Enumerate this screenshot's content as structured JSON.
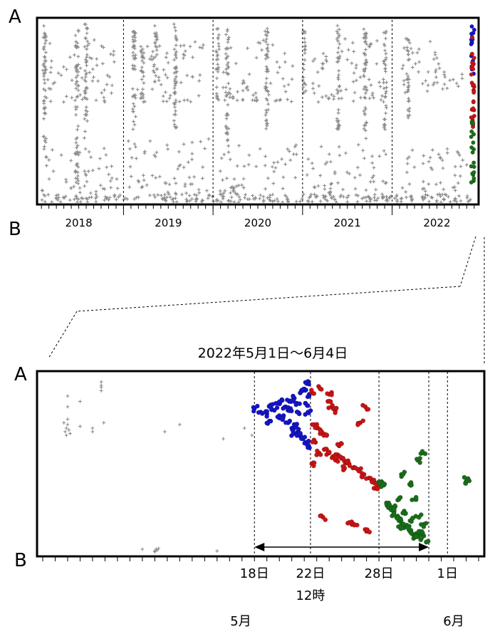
{
  "chart_data": [
    {
      "id": "overview",
      "type": "scatter",
      "endpoint_labels": {
        "top": "A",
        "bottom": "B"
      },
      "x_tick_labels": [
        "2018",
        "2019",
        "2020",
        "2021",
        "2022"
      ],
      "xlim": [
        2017.55,
        2022.45
      ],
      "ylim": [
        0,
        1
      ],
      "year_boundaries": [
        2018.5,
        2019.5,
        2020.5,
        2021.5
      ],
      "grid": false,
      "legend": "none",
      "series": [
        {
          "marker": "plus",
          "color": "#8a8a8a",
          "bursts": [
            {
              "x": 2017.62,
              "y0": 0.25,
              "y1": 0.97
            },
            {
              "x": 2017.98,
              "y0": 0.1,
              "y1": 0.95
            },
            {
              "x": 2018.08,
              "y0": 0.35,
              "y1": 0.98
            },
            {
              "x": 2018.62,
              "y0": 0.4,
              "y1": 0.96
            },
            {
              "x": 2018.71,
              "y0": 0.55,
              "y1": 0.9
            },
            {
              "x": 2018.86,
              "y0": 0.65,
              "y1": 0.97
            },
            {
              "x": 2019.08,
              "y0": 0.35,
              "y1": 0.98
            },
            {
              "x": 2019.55,
              "y0": 0.55,
              "y1": 0.96
            },
            {
              "x": 2019.66,
              "y0": 0.3,
              "y1": 0.95
            },
            {
              "x": 2020.1,
              "y0": 0.4,
              "y1": 0.98
            },
            {
              "x": 2020.52,
              "y0": 0.6,
              "y1": 0.95
            },
            {
              "x": 2020.9,
              "y0": 0.4,
              "y1": 0.98
            },
            {
              "x": 2021.2,
              "y0": 0.35,
              "y1": 0.98
            },
            {
              "x": 2021.42,
              "y0": 0.4,
              "y1": 0.96
            },
            {
              "x": 2021.68,
              "y0": 0.45,
              "y1": 0.9
            }
          ],
          "clusters": [
            {
              "x0": 2017.58,
              "x1": 2018.45,
              "y0": 0.05,
              "y1": 0.3
            },
            {
              "x0": 2018.55,
              "x1": 2019.45,
              "y0": 0.05,
              "y1": 0.35
            },
            {
              "x0": 2019.55,
              "x1": 2020.45,
              "y0": 0.05,
              "y1": 0.32
            },
            {
              "x0": 2020.55,
              "x1": 2021.45,
              "y0": 0.05,
              "y1": 0.32
            },
            {
              "x0": 2021.55,
              "x1": 2022.35,
              "y0": 0.05,
              "y1": 0.3
            },
            {
              "x0": 2017.6,
              "x1": 2018.4,
              "y0": 0.55,
              "y1": 0.9
            },
            {
              "x0": 2018.6,
              "x1": 2019.4,
              "y0": 0.55,
              "y1": 0.9
            },
            {
              "x0": 2019.6,
              "x1": 2020.4,
              "y0": 0.55,
              "y1": 0.9
            },
            {
              "x0": 2020.6,
              "x1": 2021.4,
              "y0": 0.55,
              "y1": 0.9
            },
            {
              "x0": 2021.6,
              "x1": 2022.3,
              "y0": 0.6,
              "y1": 0.9
            }
          ],
          "baseline_density": "high"
        },
        {
          "marker": "dot",
          "color": "#1414c8",
          "bursts": [
            {
              "x": 2022.4,
              "y0": 0.7,
              "y1": 0.97
            }
          ]
        },
        {
          "marker": "dot",
          "color": "#c81414",
          "bursts": [
            {
              "x": 2022.4,
              "y0": 0.4,
              "y1": 0.92
            }
          ]
        },
        {
          "marker": "dot",
          "color": "#1a6e1a",
          "bursts": [
            {
              "x": 2022.4,
              "y0": 0.1,
              "y1": 0.45
            }
          ]
        }
      ]
    },
    {
      "id": "detail",
      "type": "scatter",
      "title": "2022年5月1日～6月4日",
      "endpoint_labels": {
        "top": "A",
        "bottom": "B"
      },
      "xlim": [
        1,
        36
      ],
      "ylim": [
        0,
        1
      ],
      "x_unit": "days since 2022-05-01",
      "event_lines": [
        {
          "x": 18,
          "label": "18日"
        },
        {
          "x": 22.5,
          "label": "22日",
          "sub_label": "12時"
        },
        {
          "x": 28,
          "label": "28日"
        },
        {
          "x": 32,
          "label": ""
        },
        {
          "x": 33.5,
          "label": "1日"
        }
      ],
      "month_labels": [
        {
          "x": 15,
          "label": "5月"
        },
        {
          "x": 33.5,
          "label": "6月"
        }
      ],
      "span_arrow": {
        "from": 18,
        "to": 32
      },
      "grid": false,
      "legend": "none",
      "series": [
        {
          "marker": "plus",
          "color": "#8a8a8a",
          "points": [
            [
              3.0,
              0.88
            ],
            [
              3.0,
              0.82
            ],
            [
              4.0,
              0.85
            ],
            [
              5.7,
              0.96
            ],
            [
              5.7,
              0.94
            ],
            [
              5.7,
              0.93
            ],
            [
              5.7,
              0.91
            ],
            [
              5.9,
              0.73
            ],
            [
              5.0,
              0.68
            ],
            [
              5.0,
              0.7
            ],
            [
              2.8,
              0.68
            ],
            [
              2.9,
              0.7
            ],
            [
              3.0,
              0.72
            ],
            [
              3.1,
              0.69
            ],
            [
              2.9,
              0.66
            ],
            [
              3.2,
              0.67
            ],
            [
              2.7,
              0.73
            ],
            [
              3.0,
              0.75
            ],
            [
              4.0,
              0.71
            ],
            [
              12.0,
              0.72
            ],
            [
              15.5,
              0.64
            ],
            [
              17.2,
              0.7
            ],
            [
              17.8,
              0.66
            ],
            [
              10.8,
              0.68
            ],
            [
              9.0,
              0.02
            ],
            [
              10.0,
              0.01
            ],
            [
              10.1,
              0.02
            ],
            [
              10.2,
              0.015
            ],
            [
              10.3,
              0.025
            ],
            [
              10.0,
              0.005
            ],
            [
              15.0,
              0.01
            ]
          ]
        },
        {
          "marker": "dot",
          "color": "#1414c8",
          "points": [
            [
              18.0,
              0.81
            ],
            [
              18.5,
              0.79
            ],
            [
              19.0,
              0.78
            ],
            [
              19.3,
              0.83
            ],
            [
              19.6,
              0.8
            ],
            [
              19.9,
              0.84
            ],
            [
              20.2,
              0.86
            ],
            [
              20.5,
              0.82
            ],
            [
              20.8,
              0.85
            ],
            [
              21.1,
              0.88
            ],
            [
              21.4,
              0.84
            ],
            [
              21.7,
              0.9
            ],
            [
              22.0,
              0.92
            ],
            [
              22.2,
              0.95
            ],
            [
              22.4,
              0.89
            ],
            [
              20.3,
              0.76
            ],
            [
              20.7,
              0.73
            ],
            [
              21.0,
              0.7
            ],
            [
              21.3,
              0.72
            ],
            [
              21.5,
              0.68
            ],
            [
              21.7,
              0.66
            ],
            [
              21.9,
              0.64
            ],
            [
              22.1,
              0.62
            ],
            [
              22.3,
              0.6
            ],
            [
              19.2,
              0.74
            ],
            [
              20.0,
              0.77
            ],
            [
              20.9,
              0.81
            ],
            [
              21.6,
              0.78
            ],
            [
              22.1,
              0.84
            ],
            [
              22.3,
              0.79
            ],
            [
              21.2,
              0.67
            ]
          ]
        },
        {
          "marker": "dot",
          "color": "#c81414",
          "points": [
            [
              22.6,
              0.9
            ],
            [
              23.3,
              0.92
            ],
            [
              24.0,
              0.89
            ],
            [
              23.9,
              0.85
            ],
            [
              24.2,
              0.82
            ],
            [
              24.5,
              0.8
            ],
            [
              22.8,
              0.72
            ],
            [
              23.1,
              0.7
            ],
            [
              23.4,
              0.68
            ],
            [
              23.8,
              0.66
            ],
            [
              22.9,
              0.62
            ],
            [
              23.6,
              0.58
            ],
            [
              24.0,
              0.56
            ],
            [
              24.3,
              0.54
            ],
            [
              24.7,
              0.55
            ],
            [
              25.0,
              0.53
            ],
            [
              25.3,
              0.51
            ],
            [
              25.6,
              0.5
            ],
            [
              26.0,
              0.48
            ],
            [
              26.4,
              0.46
            ],
            [
              26.8,
              0.44
            ],
            [
              27.2,
              0.42
            ],
            [
              27.6,
              0.4
            ],
            [
              28.0,
              0.38
            ],
            [
              26.9,
              0.82
            ],
            [
              26.5,
              0.73
            ],
            [
              22.6,
              0.5
            ],
            [
              23.2,
              0.56
            ],
            [
              24.8,
              0.6
            ],
            [
              23.5,
              0.2
            ],
            [
              25.6,
              0.17
            ],
            [
              27.0,
              0.12
            ],
            [
              26.0,
              0.16
            ],
            [
              24.5,
              0.52
            ],
            [
              25.2,
              0.47
            ],
            [
              27.8,
              0.36
            ]
          ]
        },
        {
          "marker": "dot",
          "color": "#1a6e1a",
          "points": [
            [
              28.2,
              0.4
            ],
            [
              28.4,
              0.38
            ],
            [
              28.6,
              0.28
            ],
            [
              28.8,
              0.26
            ],
            [
              29.0,
              0.24
            ],
            [
              29.2,
              0.22
            ],
            [
              29.4,
              0.2
            ],
            [
              29.6,
              0.18
            ],
            [
              29.8,
              0.16
            ],
            [
              30.0,
              0.14
            ],
            [
              30.2,
              0.15
            ],
            [
              30.4,
              0.13
            ],
            [
              30.6,
              0.11
            ],
            [
              30.8,
              0.1
            ],
            [
              31.0,
              0.09
            ],
            [
              31.2,
              0.1
            ],
            [
              31.4,
              0.08
            ],
            [
              29.8,
              0.44
            ],
            [
              30.6,
              0.38
            ],
            [
              31.1,
              0.52
            ],
            [
              31.5,
              0.56
            ],
            [
              31.2,
              0.2
            ],
            [
              30.9,
              0.3
            ],
            [
              31.8,
              0.06
            ],
            [
              29.3,
              0.26
            ],
            [
              30.5,
              0.18
            ],
            [
              31.3,
              0.12
            ],
            [
              35.0,
              0.4
            ],
            [
              35.1,
              0.41
            ],
            [
              31.6,
              0.16
            ],
            [
              30.1,
              0.22
            ],
            [
              29.6,
              0.3
            ]
          ]
        }
      ]
    }
  ],
  "connector_color": "#000000"
}
